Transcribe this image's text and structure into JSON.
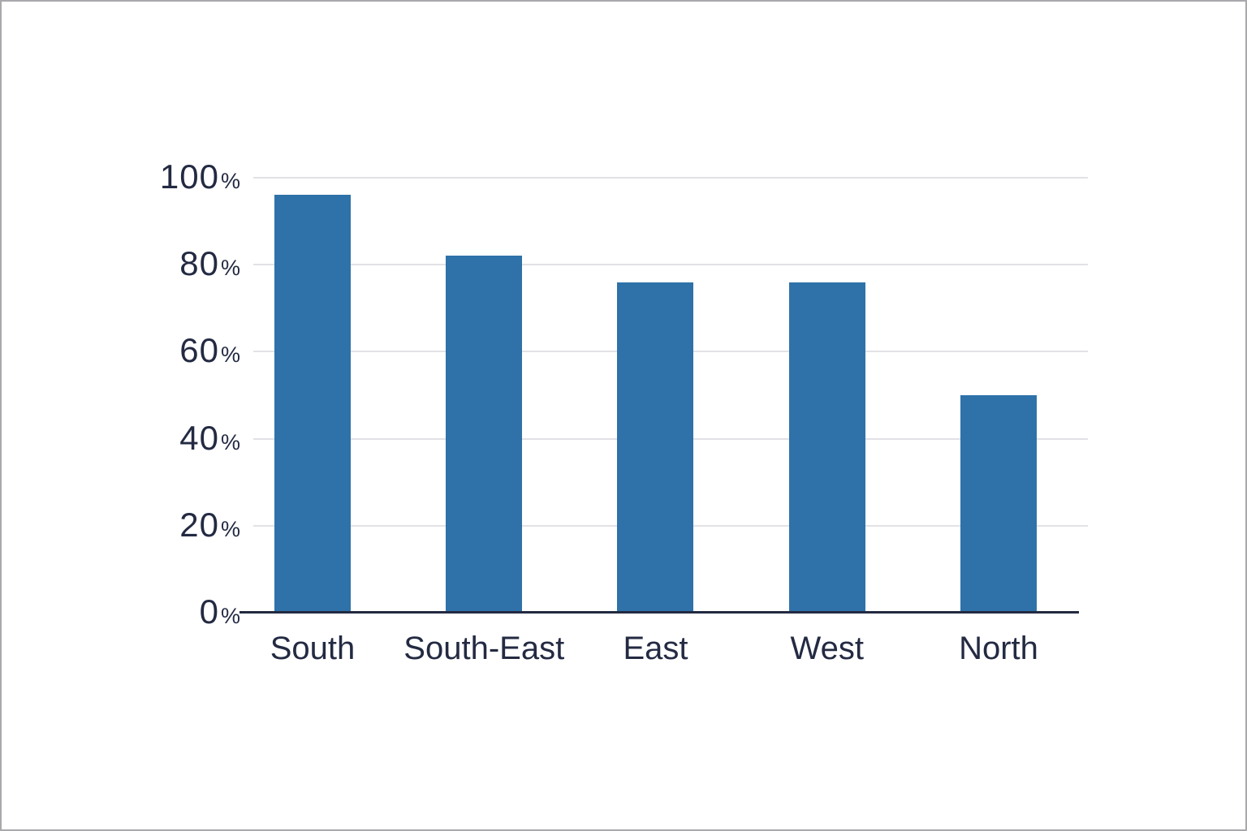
{
  "chart_data": {
    "type": "bar",
    "categories": [
      "South",
      "South-East",
      "East",
      "West",
      "North"
    ],
    "values": [
      96,
      82,
      76,
      76,
      50
    ],
    "title": "",
    "xlabel": "",
    "ylabel": "",
    "ylim": [
      0,
      100
    ],
    "yticks": [
      0,
      20,
      40,
      60,
      80,
      100
    ],
    "ytick_suffix": "%",
    "grid": true,
    "legend": "none",
    "colors": {
      "bar": "#2e72a9",
      "axis_line": "#232a42",
      "gridline": "#e2e2e6",
      "label_text": "#232a42",
      "background": "#ffffff"
    }
  }
}
